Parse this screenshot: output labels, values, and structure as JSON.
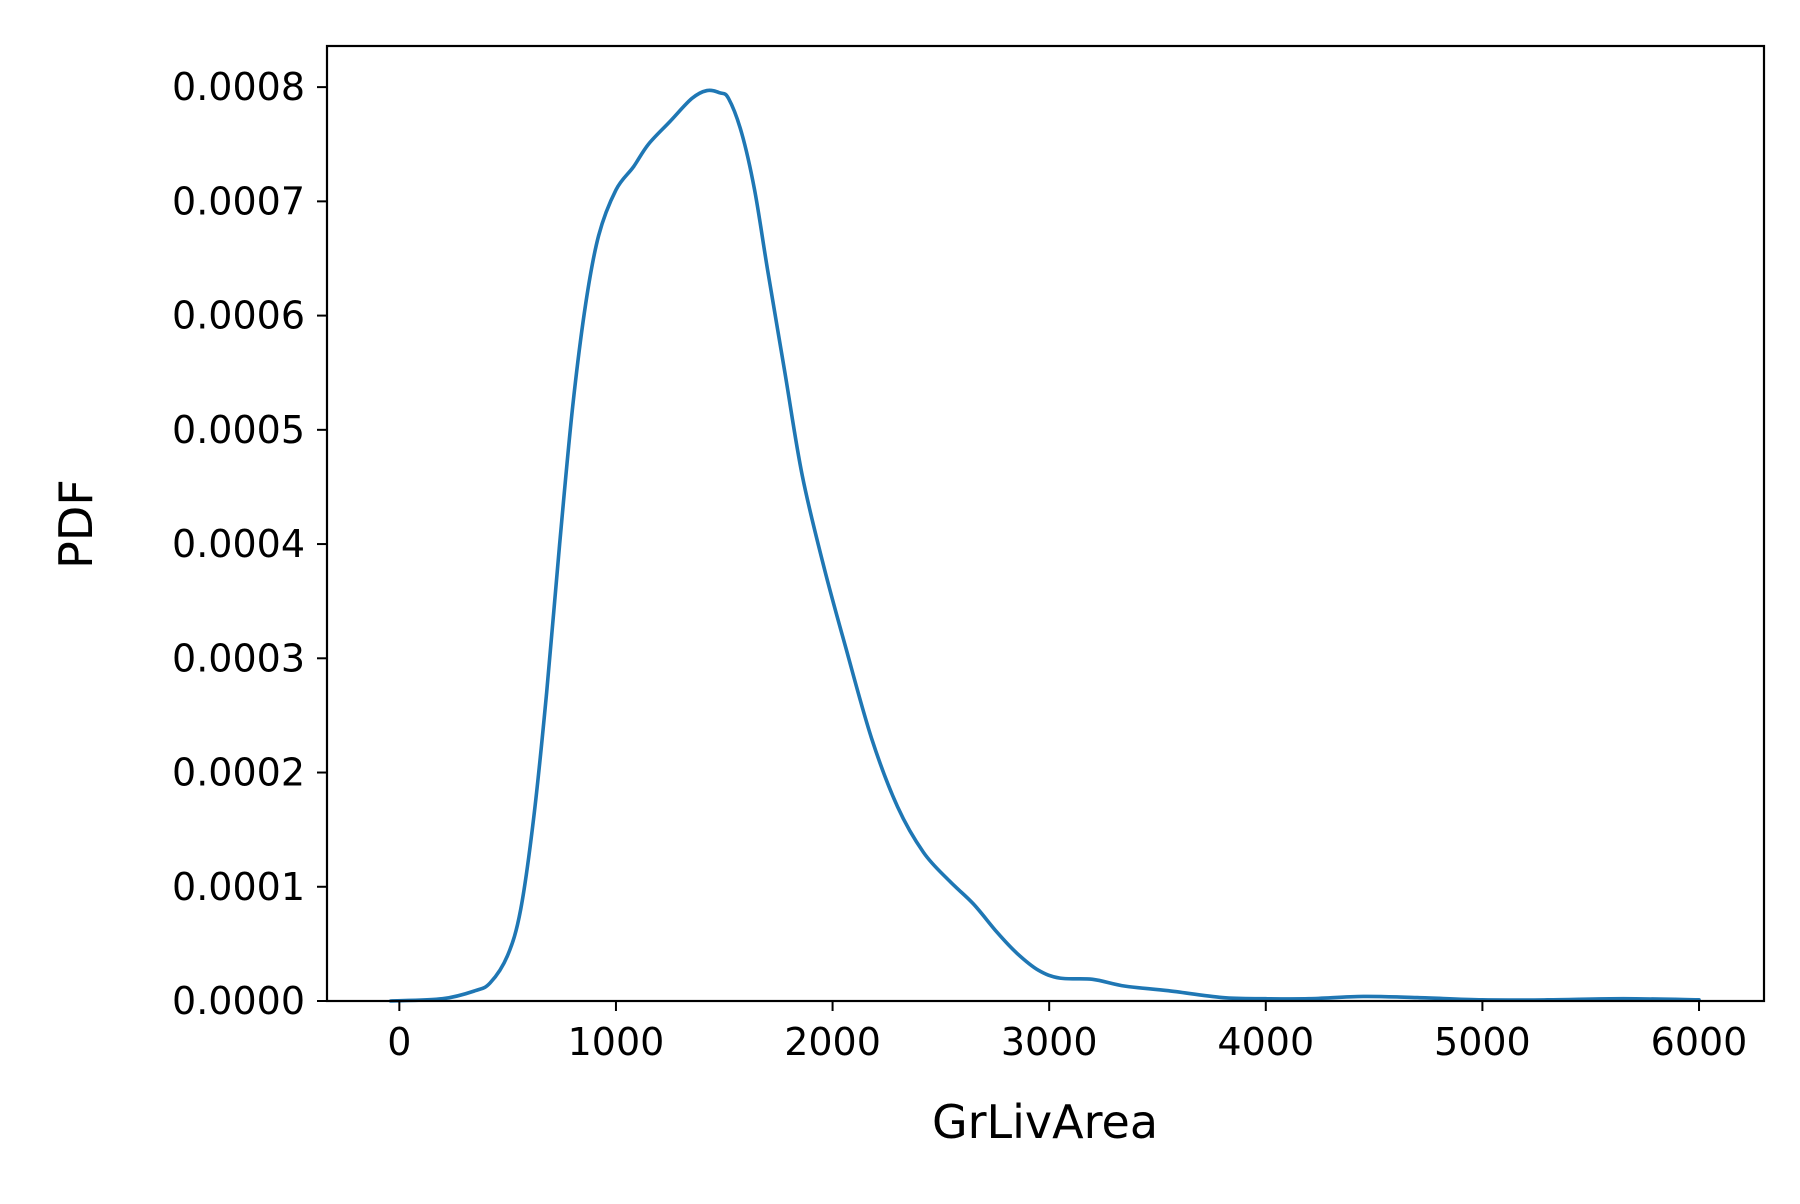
{
  "chart_data": {
    "type": "line",
    "title": "",
    "xlabel": "GrLivArea",
    "ylabel": "PDF",
    "xlim": [
      -334,
      6300
    ],
    "ylim": [
      0,
      0.000836
    ],
    "xticks": [
      0,
      1000,
      2000,
      3000,
      4000,
      5000,
      6000
    ],
    "yticks": [
      0.0,
      0.0001,
      0.0002,
      0.0003,
      0.0004,
      0.0005,
      0.0006,
      0.0007,
      0.0008
    ],
    "xtick_labels": [
      "0",
      "1000",
      "2000",
      "3000",
      "4000",
      "5000",
      "6000"
    ],
    "ytick_labels": [
      "0.0000",
      "0.0001",
      "0.0002",
      "0.0003",
      "0.0004",
      "0.0005",
      "0.0006",
      "0.0007",
      "0.0008"
    ],
    "grid": false,
    "legend": "none",
    "series": [
      {
        "color": "#1f77b4",
        "x": [
          -40,
          200,
          350,
          420,
          500,
          560,
          620,
          680,
          740,
          800,
          860,
          920,
          1000,
          1080,
          1150,
          1250,
          1350,
          1420,
          1480,
          1520,
          1580,
          1640,
          1700,
          1780,
          1860,
          1960,
          2060,
          2180,
          2300,
          2420,
          2540,
          2650,
          2760,
          2850,
          2950,
          3050,
          3200,
          3350,
          3550,
          3800,
          4000,
          4200,
          4450,
          4700,
          5000,
          5300,
          5650,
          6000
        ],
        "y": [
          0.0,
          2e-06,
          9e-06,
          1.6e-05,
          4e-05,
          8e-05,
          0.00016,
          0.00027,
          0.0004,
          0.00052,
          0.00061,
          0.00067,
          0.00071,
          0.00073,
          0.00075,
          0.00077,
          0.00079,
          0.000797,
          0.000795,
          0.00079,
          0.00076,
          0.00071,
          0.00064,
          0.00055,
          0.00046,
          0.00038,
          0.00031,
          0.00023,
          0.00017,
          0.00013,
          0.000105,
          8.5e-05,
          6e-05,
          4.2e-05,
          2.7e-05,
          2e-05,
          1.9e-05,
          1.3e-05,
          9e-06,
          3e-06,
          2e-06,
          2e-06,
          4e-06,
          3e-06,
          1e-06,
          1e-06,
          2e-06,
          1e-06
        ]
      }
    ]
  }
}
